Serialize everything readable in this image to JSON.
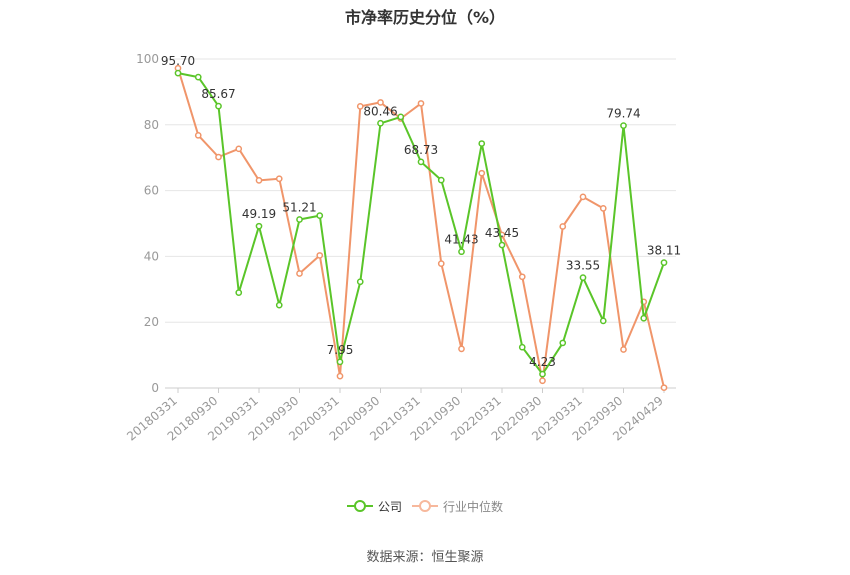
{
  "chart_data": {
    "type": "line",
    "title": "市净率历史分位（%）",
    "source": "数据来源：恒生聚源",
    "x": [
      "20180331",
      "20180630",
      "20180930",
      "20181231",
      "20190331",
      "20190630",
      "20190930",
      "20191231",
      "20200331",
      "20200630",
      "20200930",
      "20201231",
      "20210331",
      "20210630",
      "20210930",
      "20211231",
      "20220331",
      "20220630",
      "20220930",
      "20221231",
      "20230331",
      "20230630",
      "20230930",
      "20231231",
      "20240429"
    ],
    "x_tick_labels": [
      "20180331",
      "20180930",
      "20190331",
      "20190930",
      "20200331",
      "20200930",
      "20210331",
      "20210930",
      "20220331",
      "20220930",
      "20230331",
      "20230930",
      "20240429"
    ],
    "ylim": [
      0,
      100
    ],
    "y_ticks": [
      0,
      20,
      40,
      60,
      80,
      100
    ],
    "grid": true,
    "legend_position": "bottom",
    "series": [
      {
        "name": "公司",
        "color": "#5ac529",
        "values": [
          95.7,
          94.5,
          85.67,
          29,
          49.19,
          25.2,
          51.21,
          52.4,
          7.95,
          32.3,
          80.46,
          82.4,
          68.73,
          63.2,
          41.43,
          74.3,
          43.45,
          12.4,
          4.23,
          13.7,
          33.55,
          20.4,
          79.74,
          21.2,
          38.11
        ],
        "data_labels": [
          "95.70",
          null,
          "85.67",
          null,
          "49.19",
          null,
          "51.21",
          null,
          "7.95",
          null,
          "80.46",
          null,
          "68.73",
          null,
          "41.43",
          null,
          "43.45",
          null,
          "4.23",
          null,
          "33.55",
          null,
          "79.74",
          null,
          "38.11"
        ]
      },
      {
        "name": "行业中位数",
        "color": "#f0956a",
        "values": [
          97.2,
          76.8,
          70.2,
          72.7,
          63.1,
          63.6,
          34.8,
          40.3,
          3.6,
          85.6,
          86.8,
          81.9,
          86.5,
          37.8,
          11.9,
          65.3,
          46.5,
          33.8,
          2.2,
          49.1,
          58.1,
          54.6,
          11.7,
          26.2,
          0.1
        ]
      }
    ]
  },
  "legend": {
    "company": "公司",
    "industry": "行业中位数"
  }
}
